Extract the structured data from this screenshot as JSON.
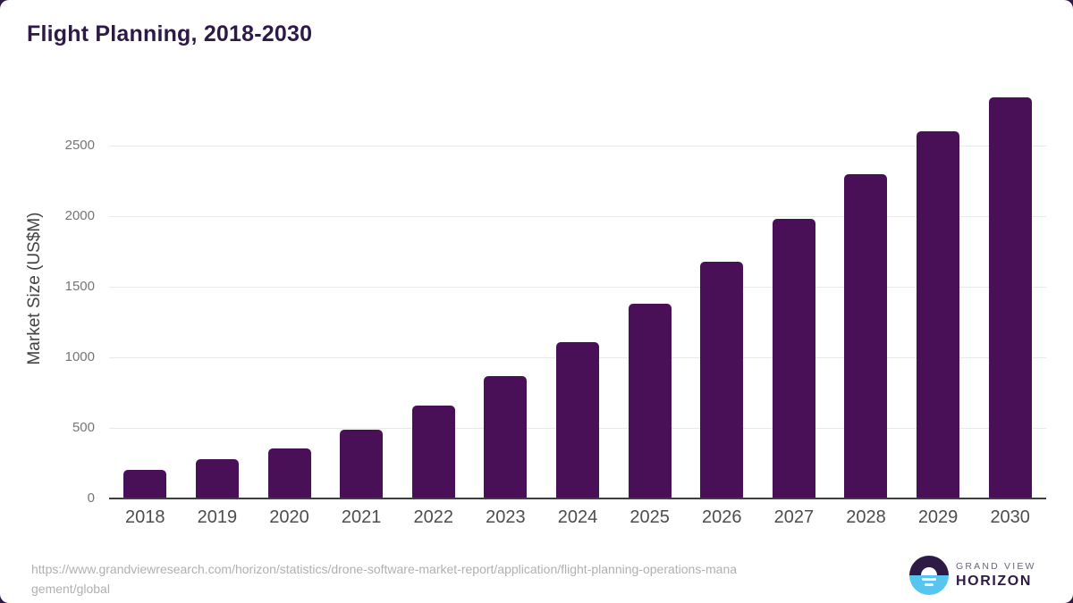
{
  "page": {
    "title": "Flight Planning, 2018-2030"
  },
  "chart_data": {
    "type": "bar",
    "title": "Flight Planning, 2018-2030",
    "xlabel": "",
    "ylabel": "Market Size (US$M)",
    "categories": [
      "2018",
      "2019",
      "2020",
      "2021",
      "2022",
      "2023",
      "2024",
      "2025",
      "2026",
      "2027",
      "2028",
      "2029",
      "2030"
    ],
    "values": [
      200,
      280,
      355,
      485,
      660,
      865,
      1110,
      1380,
      1675,
      1985,
      2300,
      2600,
      2840
    ],
    "y_ticks": [
      0,
      500,
      1000,
      1500,
      2000,
      2500
    ],
    "ylim": [
      0,
      2900
    ],
    "grid": true,
    "legend_position": "none",
    "bar_color": "#491058"
  },
  "colors": {
    "bar": "#491058",
    "title": "#2e1a47",
    "axis_line": "#3f3f3f",
    "gridline": "#e9e9e9",
    "y_tick": "#757575",
    "x_tick": "#4d4d4d",
    "ylabel": "#424242",
    "url": "#b0b0b0",
    "logo_dark": "#2d1a45",
    "logo_blue": "#56c6f0",
    "brand_gray": "#6b6477"
  },
  "footer": {
    "source_url_line1": "https://www.grandviewresearch.com/horizon/statistics/drone-software-market-report/application/flight-planning-operations-mana",
    "source_url_line2": "gement/global",
    "logo": {
      "brand_top": "GRAND VIEW",
      "brand_bottom": "HORIZON"
    }
  }
}
